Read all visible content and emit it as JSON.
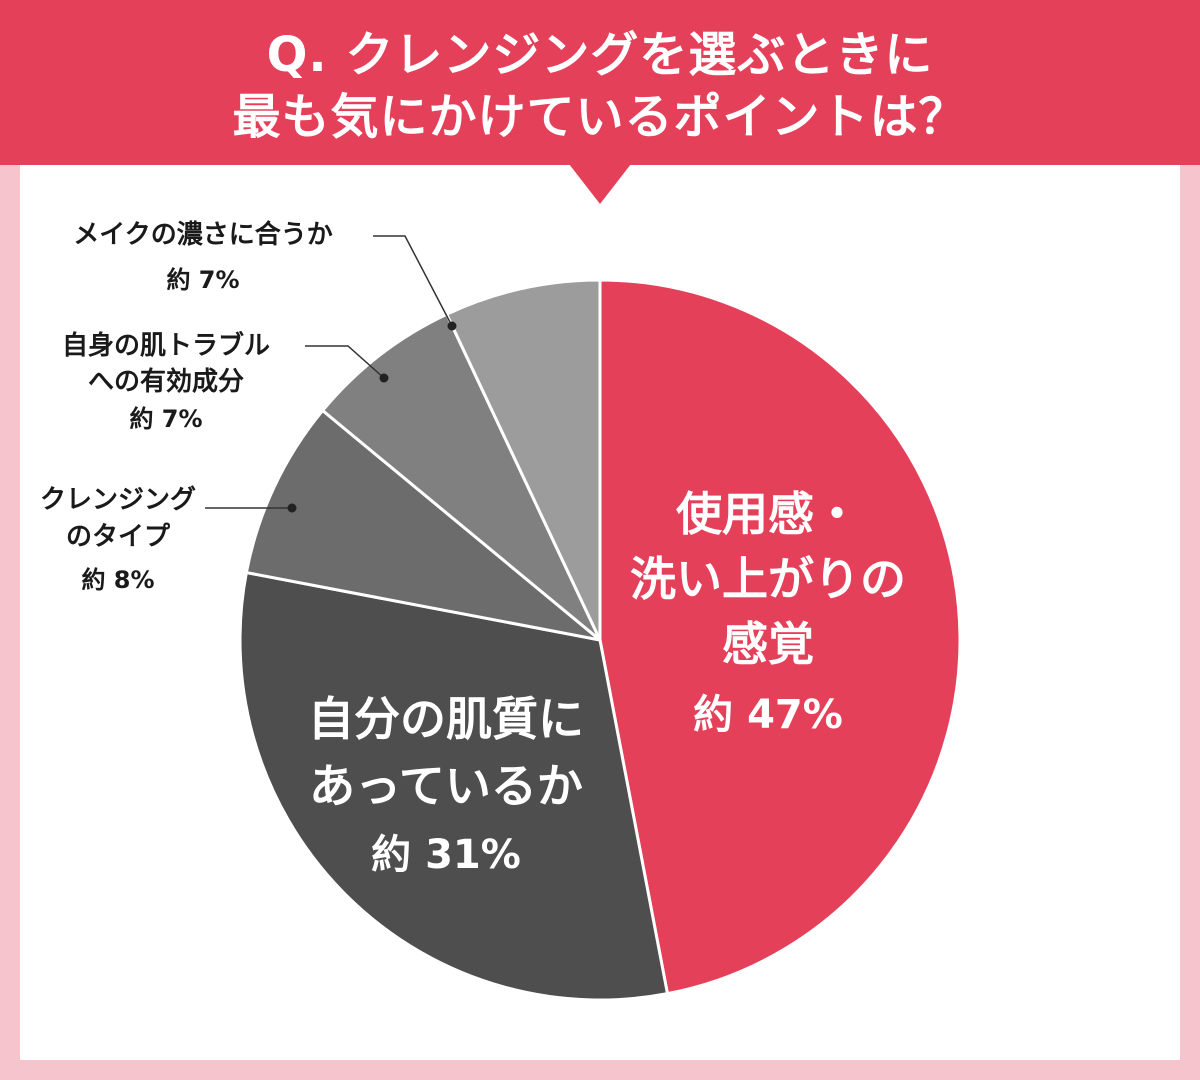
{
  "question": {
    "line1": "Q. クレンジングを選ぶときに",
    "line2": "最も気にかけているポイントは？"
  },
  "colors": {
    "header": "#e5405a",
    "background": "#f6c4cd",
    "panel": "#ffffff",
    "slice_1": "#e5405a",
    "slice_2": "#4e4e4e",
    "slice_3": "#6c6c6c",
    "slice_4": "#808080",
    "slice_5": "#9c9c9c"
  },
  "chart_data": {
    "type": "pie",
    "slices": [
      {
        "label_lines": [
          "使用感・",
          "洗い上がりの",
          "感覚"
        ],
        "value_text": "約 47%",
        "value": 47
      },
      {
        "label_lines": [
          "自分の肌質に",
          "あっているか"
        ],
        "value_text": "約 31%",
        "value": 31
      },
      {
        "label_lines": [
          "クレンジング",
          "のタイプ"
        ],
        "value_text": "約 8%",
        "value": 8
      },
      {
        "label_lines": [
          "自身の肌トラブル",
          "への有効成分"
        ],
        "value_text": "約 7%",
        "value": 7
      },
      {
        "label_lines": [
          "メイクの濃さに合うか"
        ],
        "value_text": "約 7%",
        "value": 7
      }
    ]
  }
}
